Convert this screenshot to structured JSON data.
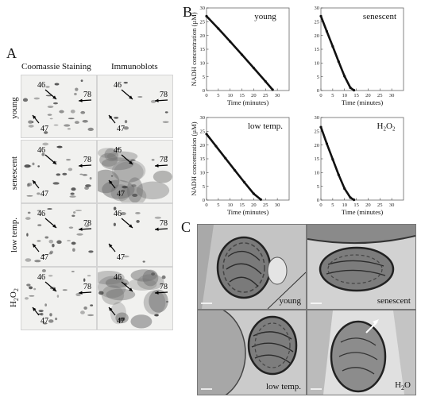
{
  "panel_labels": {
    "a": "A",
    "b": "B",
    "c": "C"
  },
  "panel_a": {
    "column_headers": [
      "Coomassie Staining",
      "Immunoblots"
    ],
    "rows": [
      {
        "label": "young"
      },
      {
        "label": "senescent"
      },
      {
        "label": "low temp."
      },
      {
        "label": "H2O2",
        "label_main": "H",
        "label_sub1": "2",
        "label_mid": "O",
        "label_sub2": "2"
      }
    ],
    "spot_labels": {
      "s46": "46",
      "s47": "47",
      "s78": "78"
    }
  },
  "chart_data": [
    {
      "type": "scatter",
      "title": "young",
      "xlabel": "Time (minutes)",
      "ylabel": "NADH concentration (µM)",
      "xlim": [
        0,
        35
      ],
      "ylim": [
        0,
        30
      ],
      "xticks": [
        0,
        5,
        10,
        15,
        20,
        25,
        30
      ],
      "yticks": [
        0,
        5,
        10,
        15,
        20,
        25,
        30
      ],
      "series": [
        {
          "x": [
            0,
            5,
            10,
            15,
            20,
            25,
            28
          ],
          "y": [
            27,
            22.5,
            17.8,
            13,
            8.2,
            3.3,
            0.3
          ]
        }
      ]
    },
    {
      "type": "scatter",
      "title": "senescent",
      "xlabel": "Time (minutes)",
      "ylabel": "",
      "xlim": [
        0,
        35
      ],
      "ylim": [
        0,
        30
      ],
      "xticks": [
        0,
        5,
        10,
        15,
        20,
        25,
        30
      ],
      "yticks": [
        0,
        5,
        10,
        15,
        20,
        25,
        30
      ],
      "series": [
        {
          "x": [
            0,
            2.5,
            5,
            7.5,
            10,
            12.5,
            14
          ],
          "y": [
            27,
            21.5,
            16,
            10.5,
            5.2,
            1,
            0.1
          ]
        }
      ]
    },
    {
      "type": "scatter",
      "title": "low temp.",
      "xlabel": "Time (minutes)",
      "ylabel": "NADH concentration (µM)",
      "xlim": [
        0,
        35
      ],
      "ylim": [
        0,
        30
      ],
      "xticks": [
        0,
        5,
        10,
        15,
        20,
        25,
        30
      ],
      "yticks": [
        0,
        5,
        10,
        15,
        20,
        25,
        30
      ],
      "series": [
        {
          "x": [
            0,
            4,
            8,
            12,
            16,
            20,
            23
          ],
          "y": [
            24,
            19.6,
            15.2,
            10.8,
            6.5,
            2.3,
            0.2
          ]
        }
      ]
    },
    {
      "type": "scatter",
      "title": "H2O2",
      "title_main": "H",
      "title_sub1": "2",
      "title_mid": "O",
      "title_sub2": "2",
      "xlabel": "Time (minutes)",
      "ylabel": "",
      "xlim": [
        0,
        35
      ],
      "ylim": [
        0,
        30
      ],
      "xticks": [
        0,
        5,
        10,
        15,
        20,
        25,
        30
      ],
      "yticks": [
        0,
        5,
        10,
        15,
        20,
        25,
        30
      ],
      "series": [
        {
          "x": [
            0,
            2.5,
            5,
            7.5,
            10,
            12.5,
            14
          ],
          "y": [
            26.5,
            20.5,
            14.8,
            9.2,
            4.2,
            0.9,
            0.1
          ]
        }
      ]
    }
  ],
  "panel_c": {
    "images": [
      {
        "label": "young"
      },
      {
        "label": "senescent"
      },
      {
        "label": "low temp."
      },
      {
        "label": "H2O",
        "label_main": "H",
        "label_sub": "2",
        "label_mid": "O"
      }
    ]
  }
}
